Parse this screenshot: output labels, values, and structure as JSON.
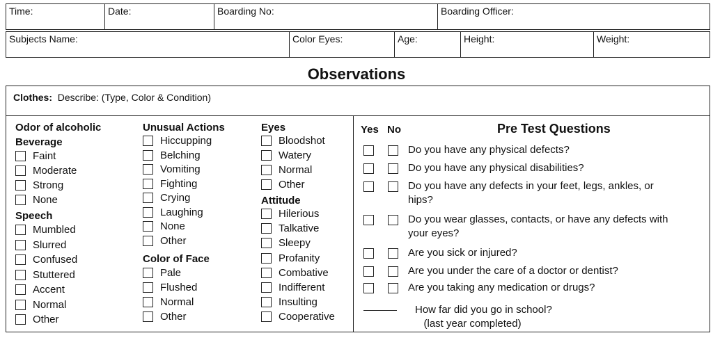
{
  "header": {
    "time": "Time:",
    "date": "Date:",
    "boarding_no": "Boarding No:",
    "boarding_officer": "Boarding Officer:",
    "subjects_name": "Subjects Name:",
    "color_eyes": "Color Eyes:",
    "age": "Age:",
    "height": "Height:",
    "weight": "Weight:"
  },
  "title": "Observations",
  "clothes": {
    "label": "Clothes:",
    "text": "Describe: (Type, Color & Condition)"
  },
  "odor": {
    "heading1": "Odor of alcoholic",
    "heading2": "Beverage",
    "items": [
      "Faint",
      "Moderate",
      "Strong",
      "None"
    ]
  },
  "speech": {
    "heading": "Speech",
    "items": [
      "Mumbled",
      "Slurred",
      "Confused",
      "Stuttered",
      "Accent",
      "Normal",
      "Other"
    ]
  },
  "unusual": {
    "heading": "Unusual Actions",
    "items": [
      "Hiccupping",
      "Belching",
      "Vomiting",
      "Fighting",
      "Crying",
      "Laughing",
      "None",
      "Other"
    ]
  },
  "face": {
    "heading": "Color of Face",
    "items": [
      "Pale",
      "Flushed",
      "Normal",
      "Other"
    ]
  },
  "eyes": {
    "heading": "Eyes",
    "items": [
      "Bloodshot",
      "Watery",
      "Normal",
      "Other"
    ]
  },
  "attitude": {
    "heading": "Attitude",
    "items": [
      "Hilerious",
      "Talkative",
      "Sleepy",
      "Profanity",
      "Combative",
      "Indifferent",
      "Insulting",
      "Cooperative"
    ]
  },
  "pretest": {
    "yes": "Yes",
    "no": "No",
    "heading": "Pre Test Questions",
    "questions": [
      "Do you have any physical defects?",
      "Do you have any physical disabilities?",
      "Do you have any defects in your feet, legs, ankles, or hips?",
      "Do you wear glasses, contacts, or have any defects with your eyes?",
      "Are you sick or injured?",
      "Are you under the care of a doctor or dentist?",
      "Are you taking any medication or drugs?"
    ],
    "school_q": "How far did you go in school?",
    "school_sub": "(last year completed)"
  }
}
